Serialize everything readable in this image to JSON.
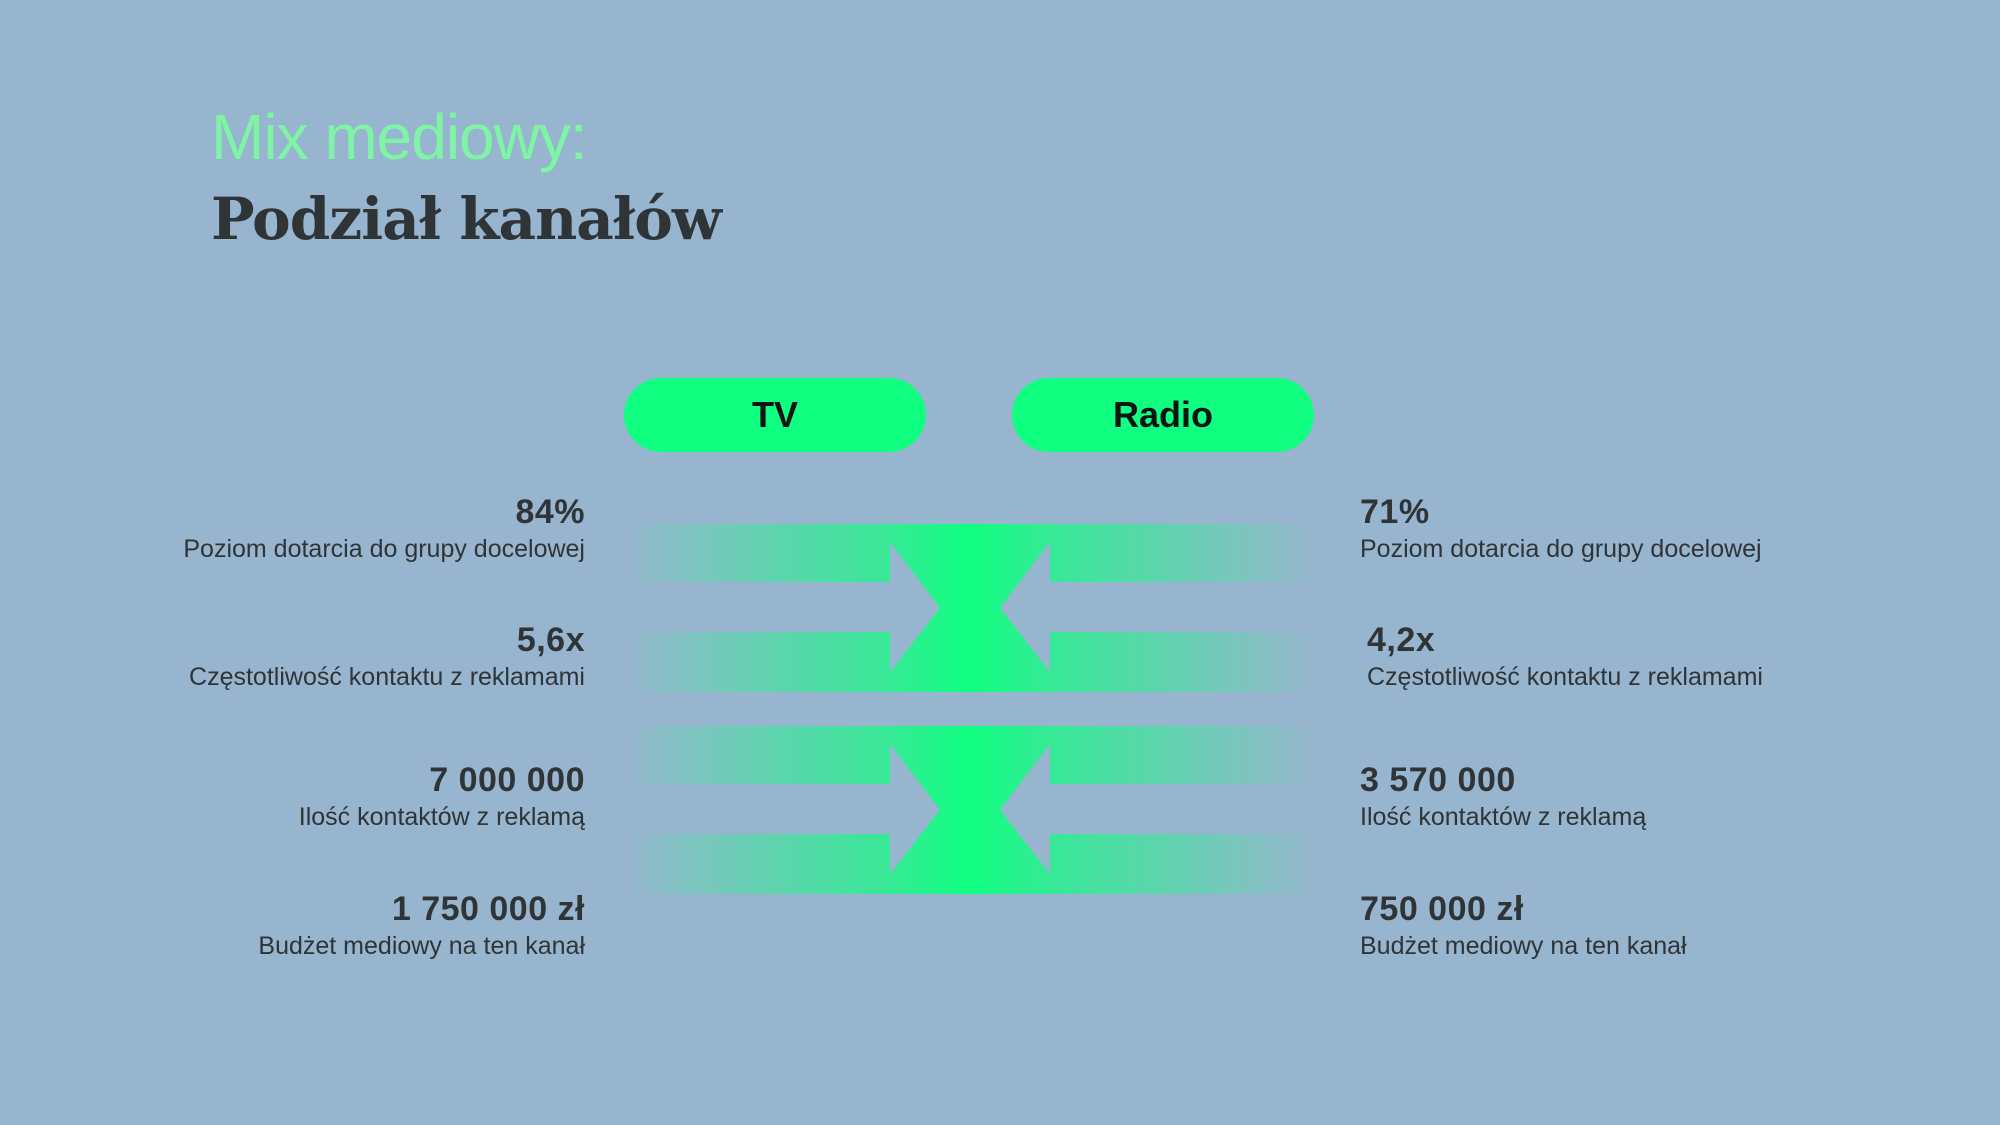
{
  "header": {
    "subtitle": "Mix mediowy:",
    "title": "Podział kanałów"
  },
  "channels": {
    "tv": "TV",
    "radio": "Radio"
  },
  "tv_stats": [
    {
      "value": "84%",
      "label": "Poziom dotarcia do grupy docelowej"
    },
    {
      "value": "5,6x",
      "label": "Częstotliwość kontaktu z reklamami"
    },
    {
      "value": "7 000 000",
      "label": "Ilość kontaktów z reklamą"
    },
    {
      "value": "1 750 000 zł",
      "label": "Budżet mediowy na ten kanał"
    }
  ],
  "radio_stats": [
    {
      "value": "71%",
      "label": "Poziom dotarcia do grupy docelowej"
    },
    {
      "value": "4,2x",
      "label": "Częstotliwość kontaktu z reklamami"
    },
    {
      "value": "3 570 000",
      "label": "Ilość kontaktów z reklamą"
    },
    {
      "value": "750 000 zł",
      "label": "Budżet mediowy na ten kanał"
    }
  ],
  "colors": {
    "background": "#98b5cf",
    "accent": "#10ff80",
    "subtitle": "#7ef5a4",
    "text": "#2f3436"
  }
}
